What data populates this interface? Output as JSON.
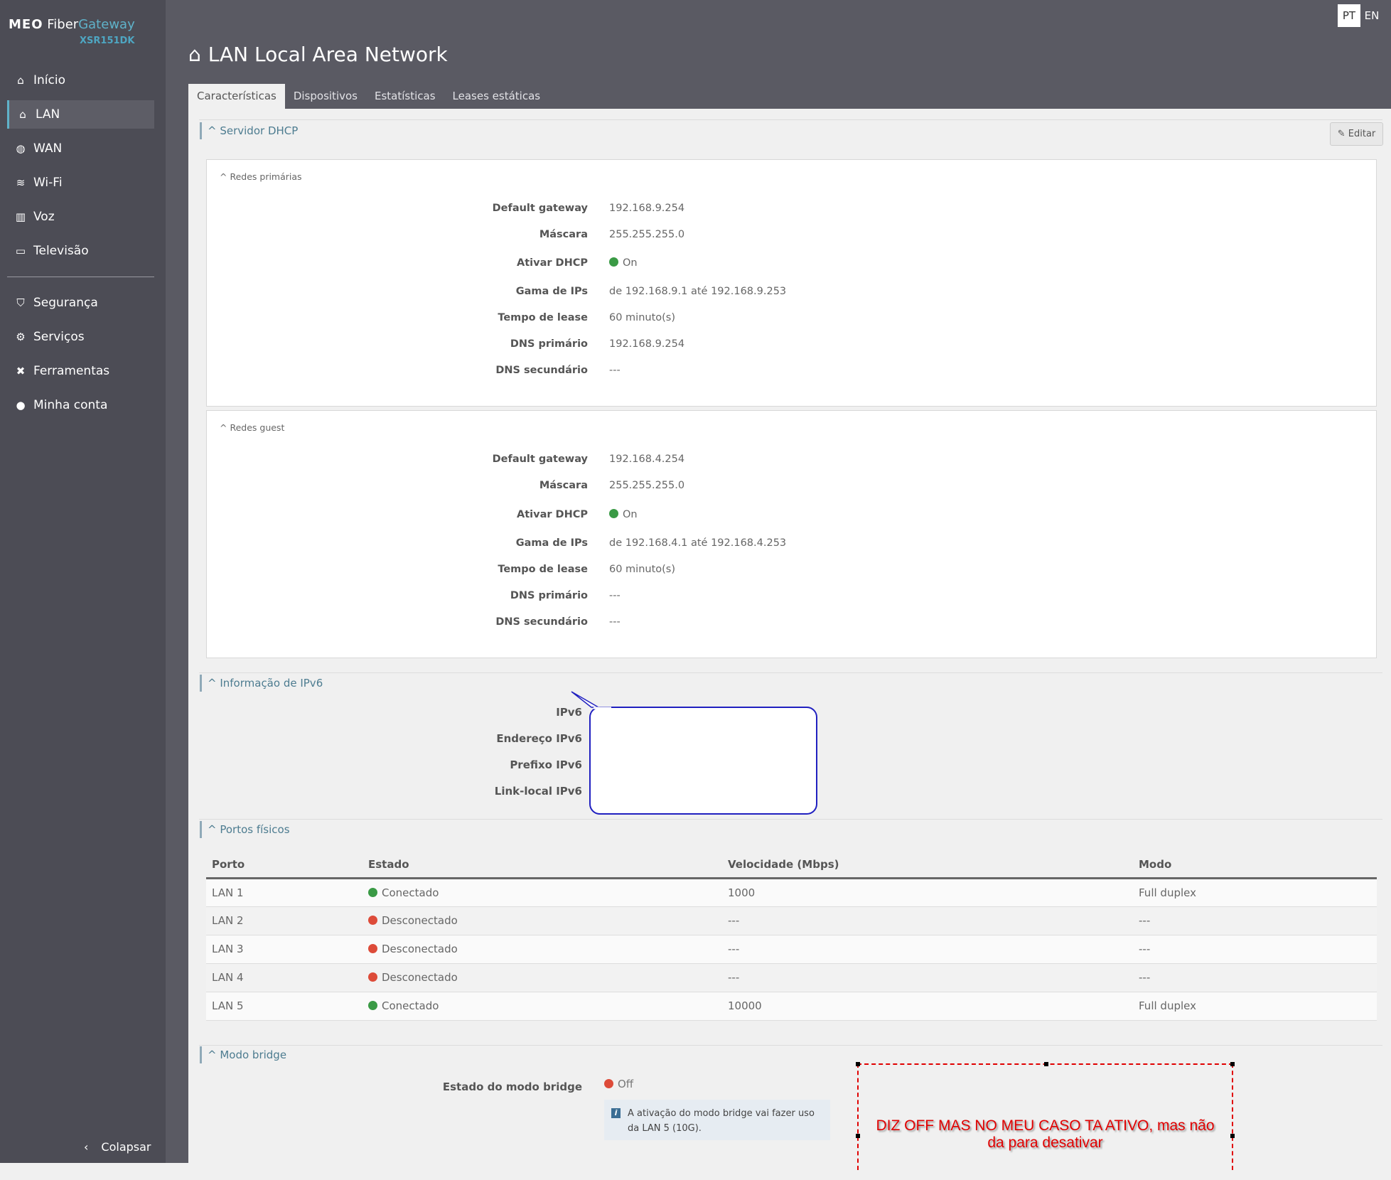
{
  "brand": {
    "logo_text": "MEO",
    "product": "Fiber",
    "product_accent": "Gateway",
    "model": "XSR151DK"
  },
  "language": {
    "options": [
      "PT",
      "EN"
    ],
    "selected": "PT"
  },
  "sidebar": {
    "items": [
      {
        "label": "Início",
        "icon": "home-icon"
      },
      {
        "label": "LAN",
        "icon": "lan-house-icon",
        "active": true
      },
      {
        "label": "WAN",
        "icon": "globe-icon"
      },
      {
        "label": "Wi-Fi",
        "icon": "wifi-icon"
      },
      {
        "label": "Voz",
        "icon": "phone-icon"
      },
      {
        "label": "Televisão",
        "icon": "monitor-icon"
      },
      {
        "label": "Segurança",
        "icon": "shield-icon"
      },
      {
        "label": "Serviços",
        "icon": "gears-icon"
      },
      {
        "label": "Ferramentas",
        "icon": "tools-icon"
      },
      {
        "label": "Minha conta",
        "icon": "user-icon"
      }
    ],
    "collapse_label": "Colapsar"
  },
  "page": {
    "title": "LAN Local Area Network",
    "tabs": [
      "Características",
      "Dispositivos",
      "Estatísticas",
      "Leases estáticas"
    ],
    "active_tab": "Características"
  },
  "dhcp": {
    "title": "Servidor DHCP",
    "edit_label": "Editar",
    "primary": {
      "title": "Redes primárias",
      "rows": [
        {
          "label": "Default gateway",
          "value": "192.168.9.254"
        },
        {
          "label": "Máscara",
          "value": "255.255.255.0"
        },
        {
          "label": "Ativar DHCP",
          "value": "On",
          "status": "#3a9a45"
        },
        {
          "label": "Gama de IPs",
          "value": "de 192.168.9.1 até 192.168.9.253"
        },
        {
          "label": "Tempo de lease",
          "value": "60 minuto(s)"
        },
        {
          "label": "DNS primário",
          "value": "192.168.9.254"
        },
        {
          "label": "DNS secundário",
          "value": "---"
        }
      ]
    },
    "guest": {
      "title": "Redes guest",
      "rows": [
        {
          "label": "Default gateway",
          "value": "192.168.4.254"
        },
        {
          "label": "Máscara",
          "value": "255.255.255.0"
        },
        {
          "label": "Ativar DHCP",
          "value": "On",
          "status": "#3a9a45"
        },
        {
          "label": "Gama de IPs",
          "value": "de 192.168.4.1 até 192.168.4.253"
        },
        {
          "label": "Tempo de lease",
          "value": "60 minuto(s)"
        },
        {
          "label": "DNS primário",
          "value": "---"
        },
        {
          "label": "DNS secundário",
          "value": "---"
        }
      ]
    }
  },
  "ipv6": {
    "title": "Informação de IPv6",
    "labels": [
      "IPv6",
      "Endereço IPv6",
      "Prefixo IPv6",
      "Link-local IPv6"
    ]
  },
  "ports": {
    "title": "Portos físicos",
    "columns": [
      "Porto",
      "Estado",
      "Velocidade (Mbps)",
      "Modo"
    ],
    "rows": [
      {
        "port": "LAN 1",
        "state": "Conectado",
        "color": "#3a9a45",
        "speed": "1000",
        "mode": "Full duplex"
      },
      {
        "port": "LAN 2",
        "state": "Desconectado",
        "color": "#dd4b39",
        "speed": "---",
        "mode": "---"
      },
      {
        "port": "LAN 3",
        "state": "Desconectado",
        "color": "#dd4b39",
        "speed": "---",
        "mode": "---"
      },
      {
        "port": "LAN 4",
        "state": "Desconectado",
        "color": "#dd4b39",
        "speed": "---",
        "mode": "---"
      },
      {
        "port": "LAN 5",
        "state": "Conectado",
        "color": "#3a9a45",
        "speed": "10000",
        "mode": "Full duplex"
      }
    ]
  },
  "bridge": {
    "title": "Modo bridge",
    "label": "Estado do modo bridge",
    "value": "Off",
    "status": "#dd4b39",
    "info": "A ativação do modo bridge vai fazer uso da LAN 5 (10G)."
  },
  "annotation": {
    "text_line1": "DIZ OFF MAS NO MEU CASO TA ATIVO, mas não",
    "text_line2": "da para desativar"
  },
  "colors": {
    "sidebar": "#4c4c55",
    "header": "#5a5a63",
    "accent": "#5fb2c9",
    "on": "#3a9a45",
    "off": "#dd4b39",
    "annotation": "#e00000"
  }
}
